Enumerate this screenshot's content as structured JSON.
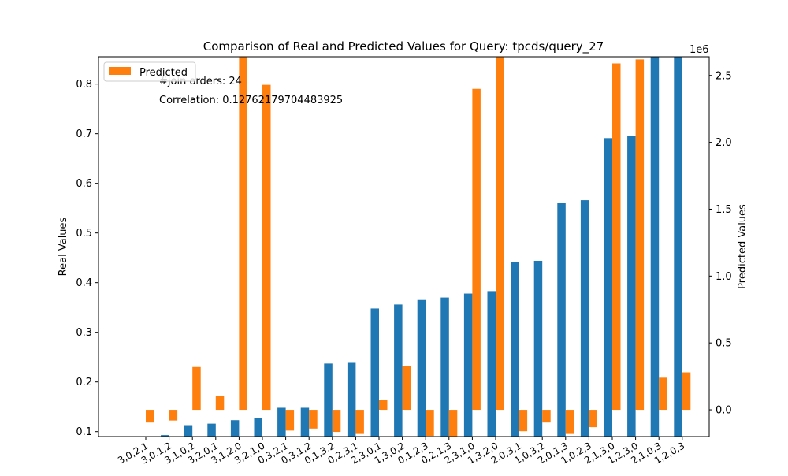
{
  "chart_data": {
    "type": "bar",
    "title": "Comparison of Real and Predicted Values for Query: tpcds/query_27",
    "ylabel": "Real Values",
    "y2label": "Predicted Values",
    "y2_offset_label": "1e6",
    "ylim": [
      0.09,
      0.855
    ],
    "y2lim": [
      -200000,
      2640000
    ],
    "yticks": [
      "0.1",
      "0.2",
      "0.3",
      "0.4",
      "0.5",
      "0.6",
      "0.7",
      "0.8"
    ],
    "y2ticks": [
      "0.0",
      "0.5",
      "1.0",
      "1.5",
      "2.0",
      "2.5"
    ],
    "legend": {
      "placement": "top-left",
      "label": "Predicted",
      "color": "#ff7f0e"
    },
    "annotations": [
      "#join orders: 24",
      "Correlation: 0.12762179704483925"
    ],
    "colors": {
      "real": "#1f77b4",
      "predicted": "#ff7f0e"
    },
    "categories": [
      "3,0,2,1",
      "3,0,1,2",
      "3,1,0,2",
      "3,2,0,1",
      "3,1,2,0",
      "3,2,1,0",
      "0,3,2,1",
      "0,3,1,2",
      "0,1,3,2",
      "0,2,3,1",
      "2,3,0,1",
      "1,3,0,2",
      "0,1,2,3",
      "0,2,1,3",
      "2,3,1,0",
      "1,3,2,0",
      "2,0,3,1",
      "1,0,3,2",
      "2,0,1,3",
      "1,0,2,3",
      "2,1,3,0",
      "1,2,3,0",
      "2,1,0,3",
      "1,2,0,3"
    ],
    "series": [
      {
        "name": "Real",
        "axis": "left",
        "values": [
          0.09,
          0.093,
          0.113,
          0.116,
          0.123,
          0.127,
          0.148,
          0.148,
          0.237,
          0.24,
          0.348,
          0.356,
          0.365,
          0.37,
          0.378,
          0.383,
          0.441,
          0.444,
          0.561,
          0.566,
          0.691,
          0.696,
          0.86,
          0.86
        ]
      },
      {
        "name": "Predicted",
        "axis": "right",
        "values": [
          -95000,
          -80000,
          320000,
          105000,
          2640000,
          2430000,
          -155000,
          -140000,
          -165000,
          -180000,
          75000,
          330000,
          -195000,
          -200000,
          2400000,
          2640000,
          -160000,
          -95000,
          -180000,
          -130000,
          2590000,
          2620000,
          240000,
          280000
        ]
      }
    ]
  }
}
